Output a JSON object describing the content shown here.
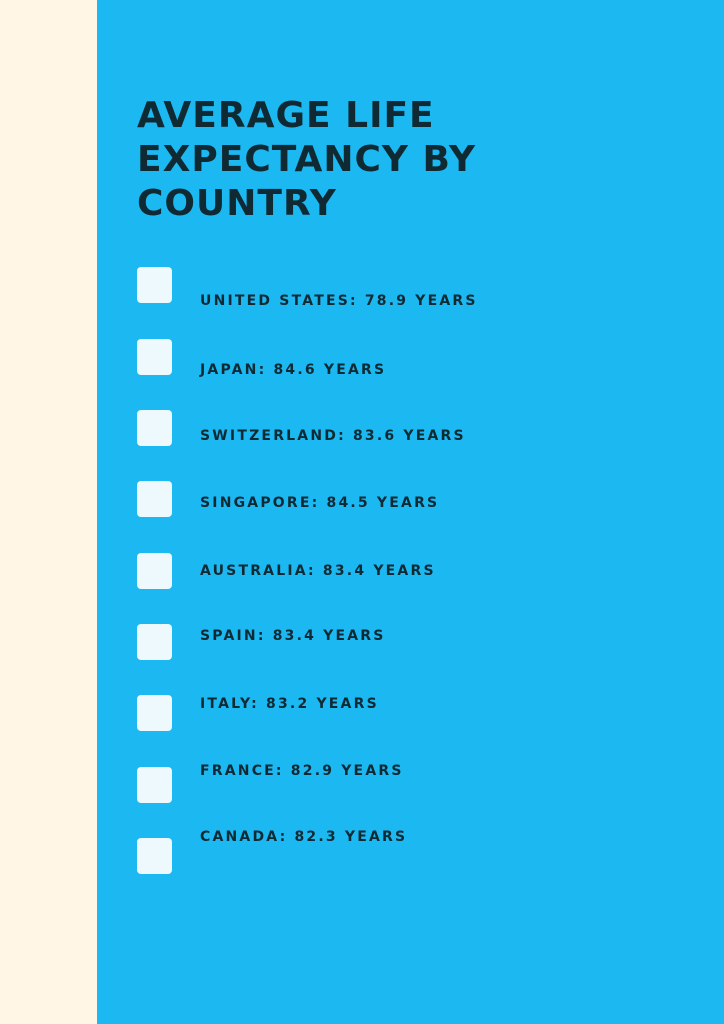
{
  "colors": {
    "left_strip": "#fff6e6",
    "panel": "#1cb8f2",
    "text": "#0f2a33",
    "checkbox": "#eef9fe"
  },
  "title": "AVERAGE LIFE EXPECTANCY BY COUNTRY",
  "items": [
    {
      "label": "UNITED STATES: 78.9 YEARS",
      "checked": false,
      "icon": "checkbox-icon"
    },
    {
      "label": "JAPAN: 84.6 YEARS",
      "checked": false,
      "icon": "checkbox-icon"
    },
    {
      "label": "SWITZERLAND: 83.6 YEARS",
      "checked": false,
      "icon": "checkbox-icon"
    },
    {
      "label": "SINGAPORE: 84.5 YEARS",
      "checked": false,
      "icon": "checkbox-icon"
    },
    {
      "label": "AUSTRALIA: 83.4 YEARS",
      "checked": false,
      "icon": "checkbox-icon"
    },
    {
      "label": "SPAIN: 83.4 YEARS",
      "checked": false,
      "icon": "checkbox-icon"
    },
    {
      "label": "ITALY: 83.2 YEARS",
      "checked": false,
      "icon": "checkbox-icon"
    },
    {
      "label": "FRANCE: 82.9 YEARS",
      "checked": false,
      "icon": "checkbox-icon"
    },
    {
      "label": "CANADA: 82.3 YEARS",
      "checked": false,
      "icon": "checkbox-icon"
    }
  ]
}
